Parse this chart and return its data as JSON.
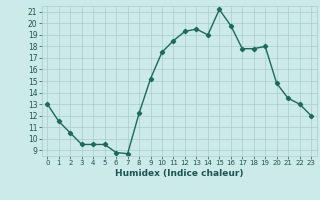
{
  "x": [
    0,
    1,
    2,
    3,
    4,
    5,
    6,
    7,
    8,
    9,
    10,
    11,
    12,
    13,
    14,
    15,
    16,
    17,
    18,
    19,
    20,
    21,
    22,
    23
  ],
  "y": [
    13,
    11.5,
    10.5,
    9.5,
    9.5,
    9.5,
    8.8,
    8.7,
    12.2,
    15.2,
    17.5,
    18.5,
    19.3,
    19.5,
    19.0,
    21.2,
    19.8,
    17.8,
    17.8,
    18.0,
    14.8,
    13.5,
    13.0,
    12.0
  ],
  "xlabel": "Humidex (Indice chaleur)",
  "ylim": [
    8.5,
    21.5
  ],
  "xlim": [
    -0.5,
    23.5
  ],
  "yticks": [
    9,
    10,
    11,
    12,
    13,
    14,
    15,
    16,
    17,
    18,
    19,
    20,
    21
  ],
  "xticks": [
    0,
    1,
    2,
    3,
    4,
    5,
    6,
    7,
    8,
    9,
    10,
    11,
    12,
    13,
    14,
    15,
    16,
    17,
    18,
    19,
    20,
    21,
    22,
    23
  ],
  "line_color": "#1a6b5a",
  "bg_color": "#cceae7",
  "grid_color": "#aacccc",
  "marker": "D",
  "marker_size": 2.2,
  "linewidth": 1.0
}
